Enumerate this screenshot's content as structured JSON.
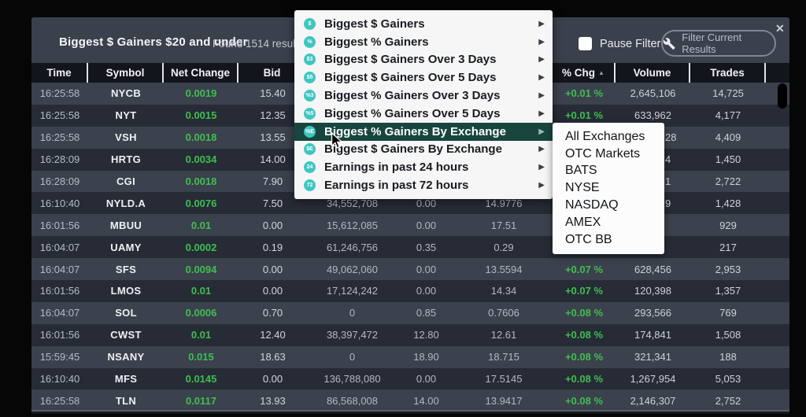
{
  "window": {
    "title": "Biggest $ Gainers $20 and under",
    "results_text": "Found 1514 results",
    "pause_filter_label": "Pause Filter",
    "filter_button_label": "Filter Current Results",
    "close_glyph": "✕"
  },
  "table": {
    "headers": [
      "Time",
      "Symbol",
      "Net Change",
      "Bid",
      "",
      "",
      "",
      "% Chg",
      "Volume",
      "Trades",
      ""
    ],
    "sort": {
      "column": "% Chg",
      "direction": "asc",
      "glyph": "▲"
    },
    "rows": [
      {
        "time": "16:25:58",
        "symbol": "NYCB",
        "net_change": "0.0019",
        "bid": "15.40",
        "c5": "",
        "c6": "",
        "c7": "",
        "pct_chg": "+0.01 %",
        "volume": "2,645,106",
        "volume_partial": false,
        "trades": "14,725"
      },
      {
        "time": "16:25:58",
        "symbol": "NYT",
        "net_change": "0.0015",
        "bid": "12.35",
        "c5": "",
        "c6": "",
        "c7": "",
        "pct_chg": "+0.01 %",
        "volume": "633,962",
        "volume_partial": false,
        "trades": "4,177"
      },
      {
        "time": "16:25:58",
        "symbol": "VSH",
        "net_change": "0.0018",
        "bid": "13.55",
        "c5": "",
        "c6": "",
        "c7": "",
        "pct_chg": "",
        "volume": "28",
        "volume_partial": true,
        "trades": "4,409"
      },
      {
        "time": "16:28:09",
        "symbol": "HRTG",
        "net_change": "0.0034",
        "bid": "14.00",
        "c5": "",
        "c6": "",
        "c7": "",
        "pct_chg": "",
        "volume": "4",
        "volume_partial": true,
        "trades": "1,450"
      },
      {
        "time": "16:28:09",
        "symbol": "CGI",
        "net_change": "0.0018",
        "bid": "7.90",
        "c5": "",
        "c6": "",
        "c7": "",
        "pct_chg": "",
        "volume": "1",
        "volume_partial": true,
        "trades": "2,722"
      },
      {
        "time": "16:10:40",
        "symbol": "NYLD.A",
        "net_change": "0.0076",
        "bid": "7.50",
        "c5": "34,552,708",
        "c6": "0.00",
        "c7": "14.9776",
        "pct_chg": "",
        "volume": "9",
        "volume_partial": true,
        "trades": "1,428"
      },
      {
        "time": "16:01:56",
        "symbol": "MBUU",
        "net_change": "0.01",
        "bid": "0.00",
        "c5": "15,612,085",
        "c6": "0.00",
        "c7": "17.51",
        "pct_chg": "",
        "volume": "",
        "volume_partial": false,
        "trades": "929"
      },
      {
        "time": "16:04:07",
        "symbol": "UAMY",
        "net_change": "0.0002",
        "bid": "0.19",
        "c5": "61,246,756",
        "c6": "0.35",
        "c7": "0.29",
        "pct_chg": "",
        "volume": "",
        "volume_partial": false,
        "trades": "217"
      },
      {
        "time": "16:04:07",
        "symbol": "SFS",
        "net_change": "0.0094",
        "bid": "0.00",
        "c5": "49,062,060",
        "c6": "0.00",
        "c7": "13.5594",
        "pct_chg": "+0.07 %",
        "volume": "628,456",
        "volume_partial": false,
        "trades": "2,953"
      },
      {
        "time": "16:01:56",
        "symbol": "LMOS",
        "net_change": "0.01",
        "bid": "0.00",
        "c5": "17,124,242",
        "c6": "0.00",
        "c7": "14.34",
        "pct_chg": "+0.07 %",
        "volume": "120,398",
        "volume_partial": false,
        "trades": "1,357"
      },
      {
        "time": "16:04:07",
        "symbol": "SOL",
        "net_change": "0.0006",
        "bid": "0.70",
        "c5": "0",
        "c6": "0.85",
        "c7": "0.7606",
        "pct_chg": "+0.08 %",
        "volume": "293,566",
        "volume_partial": false,
        "trades": "769"
      },
      {
        "time": "16:01:56",
        "symbol": "CWST",
        "net_change": "0.01",
        "bid": "12.40",
        "c5": "38,397,472",
        "c6": "12.80",
        "c7": "12.61",
        "pct_chg": "+0.08 %",
        "volume": "174,841",
        "volume_partial": false,
        "trades": "1,508"
      },
      {
        "time": "15:59:45",
        "symbol": "NSANY",
        "net_change": "0.015",
        "bid": "18.63",
        "c5": "0",
        "c6": "18.90",
        "c7": "18.715",
        "pct_chg": "+0.08 %",
        "volume": "321,341",
        "volume_partial": false,
        "trades": "188"
      },
      {
        "time": "16:10:40",
        "symbol": "MFS",
        "net_change": "0.0145",
        "bid": "0.00",
        "c5": "136,788,080",
        "c6": "0.00",
        "c7": "17.5145",
        "pct_chg": "+0.08 %",
        "volume": "1,267,954",
        "volume_partial": false,
        "trades": "5,053"
      },
      {
        "time": "16:25:58",
        "symbol": "TLN",
        "net_change": "0.0117",
        "bid": "13.93",
        "c5": "86,568,008",
        "c6": "14.00",
        "c7": "13.9417",
        "pct_chg": "+0.08 %",
        "volume": "2,146,307",
        "volume_partial": false,
        "trades": "2,752"
      }
    ]
  },
  "menu": {
    "arrow_glyph": "▶",
    "items": [
      {
        "icon": "dollar-gainers-icon",
        "glyph": "$",
        "label": "Biggest $ Gainers",
        "highlighted": false
      },
      {
        "icon": "pct-gainers-icon",
        "glyph": "%",
        "label": "Biggest % Gainers",
        "highlighted": false
      },
      {
        "icon": "dollar-gainers-3d-icon",
        "glyph": "$3",
        "label": "Biggest $ Gainers Over 3 Days",
        "highlighted": false
      },
      {
        "icon": "dollar-gainers-5d-icon",
        "glyph": "$5",
        "label": "Biggest $ Gainers Over 5 Days",
        "highlighted": false
      },
      {
        "icon": "pct-gainers-3d-icon",
        "glyph": "%3",
        "label": "Biggest % Gainers Over 3 Days",
        "highlighted": false
      },
      {
        "icon": "pct-gainers-5d-icon",
        "glyph": "%5",
        "label": "Biggest % Gainers Over 5 Days",
        "highlighted": false
      },
      {
        "icon": "pct-gainers-exchange-icon",
        "glyph": "%E",
        "label": "Biggest % Gainers By Exchange",
        "highlighted": true
      },
      {
        "icon": "dollar-gainers-exchange-icon",
        "glyph": "$E",
        "label": "Biggest $ Gainers By Exchange",
        "highlighted": false
      },
      {
        "icon": "earnings-24h-icon",
        "glyph": "24",
        "label": "Earnings in past 24 hours",
        "highlighted": false
      },
      {
        "icon": "earnings-72h-icon",
        "glyph": "72",
        "label": "Earnings in past 72 hours",
        "highlighted": false
      }
    ]
  },
  "submenu": {
    "items": [
      "All Exchanges",
      "OTC Markets",
      "BATS",
      "NYSE",
      "NASDAQ",
      "AMEX",
      "OTC BB"
    ]
  },
  "colors": {
    "accent_teal": "#3fc6c0",
    "positive_green": "#3fbf4f",
    "menu_highlight": "#18463f",
    "row_light": "#3b414d",
    "row_dark": "#262b35",
    "titlebar": "#3b404d",
    "header_bg": "#13151c"
  }
}
